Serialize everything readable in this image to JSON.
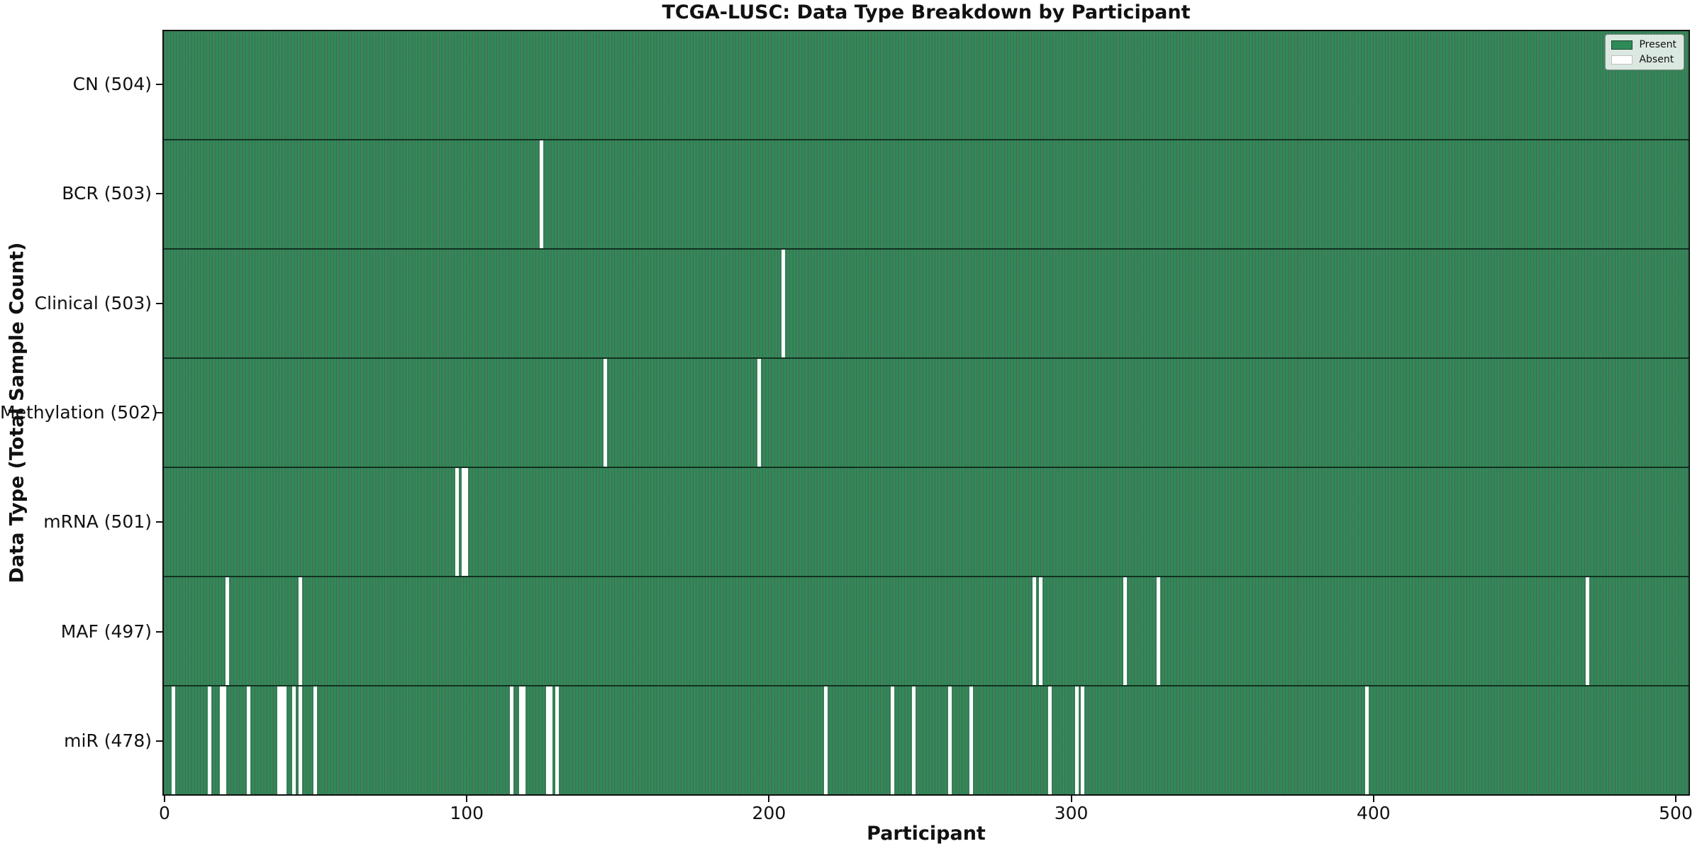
{
  "chart_data": {
    "type": "heatmap",
    "title": "TCGA-LUSC: Data Type Breakdown by Participant",
    "xlabel": "Participant",
    "ylabel": "Data Type (Total Sample Count)",
    "legend": [
      "Present",
      "Absent"
    ],
    "legend_position": "upper right",
    "n_participants": 504,
    "x_range": [
      0,
      504
    ],
    "x_ticks": [
      0,
      100,
      200,
      300,
      400,
      500
    ],
    "grid": false,
    "colors": {
      "present": "#2e8b57",
      "absent": "#ffffff",
      "bar_edge": "#1c4630"
    },
    "rows": [
      {
        "data_type": "CN",
        "label": "CN (504)",
        "total": 504,
        "absent_participants": []
      },
      {
        "data_type": "BCR",
        "label": "BCR (503)",
        "total": 503,
        "absent_participants": [
          124
        ]
      },
      {
        "data_type": "Clinical",
        "label": "Clinical (503)",
        "total": 503,
        "absent_participants": [
          204
        ]
      },
      {
        "data_type": "Methylation",
        "label": "Methylation (502)",
        "total": 502,
        "absent_participants": [
          145,
          196
        ]
      },
      {
        "data_type": "mRNA",
        "label": "mRNA (501)",
        "total": 501,
        "absent_participants": [
          96,
          98,
          99
        ]
      },
      {
        "data_type": "MAF",
        "label": "MAF (497)",
        "total": 497,
        "absent_participants": [
          20,
          44,
          287,
          289,
          317,
          328,
          470
        ]
      },
      {
        "data_type": "miR",
        "label": "miR (478)",
        "total": 478,
        "absent_participants": [
          2,
          14,
          18,
          19,
          27,
          37,
          38,
          39,
          42,
          44,
          49,
          114,
          117,
          118,
          126,
          127,
          129,
          218,
          240,
          247,
          259,
          266,
          292,
          301,
          303,
          397
        ]
      }
    ]
  }
}
